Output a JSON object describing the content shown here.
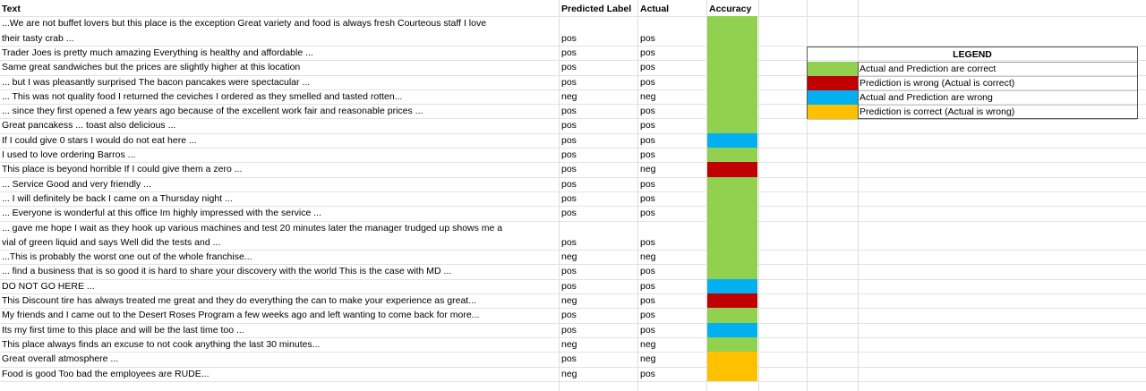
{
  "headers": {
    "text": "Text",
    "predicted": "Predicted Label",
    "actual": "Actual",
    "accuracy": "Accuracy"
  },
  "colors": {
    "correct": "#92d050",
    "prediction_wrong": "#c00000",
    "both_wrong": "#00b0f0",
    "actual_wrong": "#ffc000",
    "grid": "#dcdcdc"
  },
  "rows": [
    {
      "text_lines": [
        "...We are not buffet lovers but this place is the exception  Great variety and food is always fresh  Courteous staff  I love",
        "their tasty crab ..."
      ],
      "predicted": "pos",
      "actual": "pos",
      "accuracy": "correct"
    },
    {
      "text_lines": [
        "Trader Joes is pretty much amazing Everything is healthy and affordable ..."
      ],
      "predicted": "pos",
      "actual": "pos",
      "accuracy": "correct"
    },
    {
      "text_lines": [
        "Same great sandwiches but the prices are slightly higher at this location"
      ],
      "predicted": "pos",
      "actual": "pos",
      "accuracy": "correct"
    },
    {
      "text_lines": [
        "... but I was pleasantly surprised  The bacon pancakes were spectacular ..."
      ],
      "predicted": "pos",
      "actual": "pos",
      "accuracy": "correct"
    },
    {
      "text_lines": [
        "... This was not quality food I returned the ceviches I ordered as they smelled and tasted rotten..."
      ],
      "predicted": "neg",
      "actual": "neg",
      "accuracy": "correct"
    },
    {
      "text_lines": [
        "... since they first opened a few years ago because of the excellent work fair and reasonable prices ..."
      ],
      "predicted": "pos",
      "actual": "pos",
      "accuracy": "correct"
    },
    {
      "text_lines": [
        "Great pancakess  ... toast also delicious ..."
      ],
      "predicted": "pos",
      "actual": "pos",
      "accuracy": "correct"
    },
    {
      "text_lines": [
        "If I could give 0 stars I would do not eat here ..."
      ],
      "predicted": "pos",
      "actual": "pos",
      "accuracy": "both_wrong"
    },
    {
      "text_lines": [
        "I used to love ordering Barros ..."
      ],
      "predicted": "pos",
      "actual": "pos",
      "accuracy": "correct"
    },
    {
      "text_lines": [
        "This place is beyond horrible If I could give them a zero ..."
      ],
      "predicted": "pos",
      "actual": "neg",
      "accuracy": "prediction_wrong"
    },
    {
      "text_lines": [
        "... Service Good and very friendly ..."
      ],
      "predicted": "pos",
      "actual": "pos",
      "accuracy": "correct"
    },
    {
      "text_lines": [
        "... I will definitely be back I came on a Thursday night ..."
      ],
      "predicted": "pos",
      "actual": "pos",
      "accuracy": "correct"
    },
    {
      "text_lines": [
        "... Everyone is wonderful at this office  Im highly impressed with the service ..."
      ],
      "predicted": "pos",
      "actual": "pos",
      "accuracy": "correct"
    },
    {
      "text_lines": [
        "... gave me hope I wait as they hook up various machines and test 20 minutes later the manager trudged up shows me a",
        "vial of green liquid and says Well did the tests and ..."
      ],
      "predicted": "pos",
      "actual": "pos",
      "accuracy": "correct"
    },
    {
      "text_lines": [
        "...This is probably the worst one out of the whole franchise..."
      ],
      "predicted": "neg",
      "actual": "neg",
      "accuracy": "correct"
    },
    {
      "text_lines": [
        "... find a business that is so good it is hard to share your discovery with the world This is the case with MD ..."
      ],
      "predicted": "pos",
      "actual": "pos",
      "accuracy": "correct"
    },
    {
      "text_lines": [
        "DO NOT GO HERE ..."
      ],
      "predicted": "pos",
      "actual": "pos",
      "accuracy": "both_wrong"
    },
    {
      "text_lines": [
        "This Discount tire has always treated me great and they do everything the can to make your experience as great..."
      ],
      "predicted": "neg",
      "actual": "pos",
      "accuracy": "prediction_wrong"
    },
    {
      "text_lines": [
        "My friends and I came out to the Desert Roses Program a few weeks ago and left wanting to come back for more..."
      ],
      "predicted": "pos",
      "actual": "pos",
      "accuracy": "correct"
    },
    {
      "text_lines": [
        "Its my first time to this place and will be the last time too ..."
      ],
      "predicted": "pos",
      "actual": "pos",
      "accuracy": "both_wrong"
    },
    {
      "text_lines": [
        "This place always finds an excuse to not cook anything the last 30 minutes..."
      ],
      "predicted": "neg",
      "actual": "neg",
      "accuracy": "correct"
    },
    {
      "text_lines": [
        "Great overall atmosphere ..."
      ],
      "predicted": "pos",
      "actual": "neg",
      "accuracy": "actual_wrong"
    },
    {
      "text_lines": [
        "Food is good Too bad the employees are RUDE..."
      ],
      "predicted": "neg",
      "actual": "pos",
      "accuracy": "actual_wrong"
    }
  ],
  "legend": {
    "title": "LEGEND",
    "items": [
      {
        "key": "correct",
        "label": "Actual and Prediction are correct"
      },
      {
        "key": "prediction_wrong",
        "label": "Prediction is wrong (Actual is correct)"
      },
      {
        "key": "both_wrong",
        "label": "Actual and Prediction are wrong"
      },
      {
        "key": "actual_wrong",
        "label": "Prediction is correct (Actual is wrong)"
      }
    ]
  }
}
